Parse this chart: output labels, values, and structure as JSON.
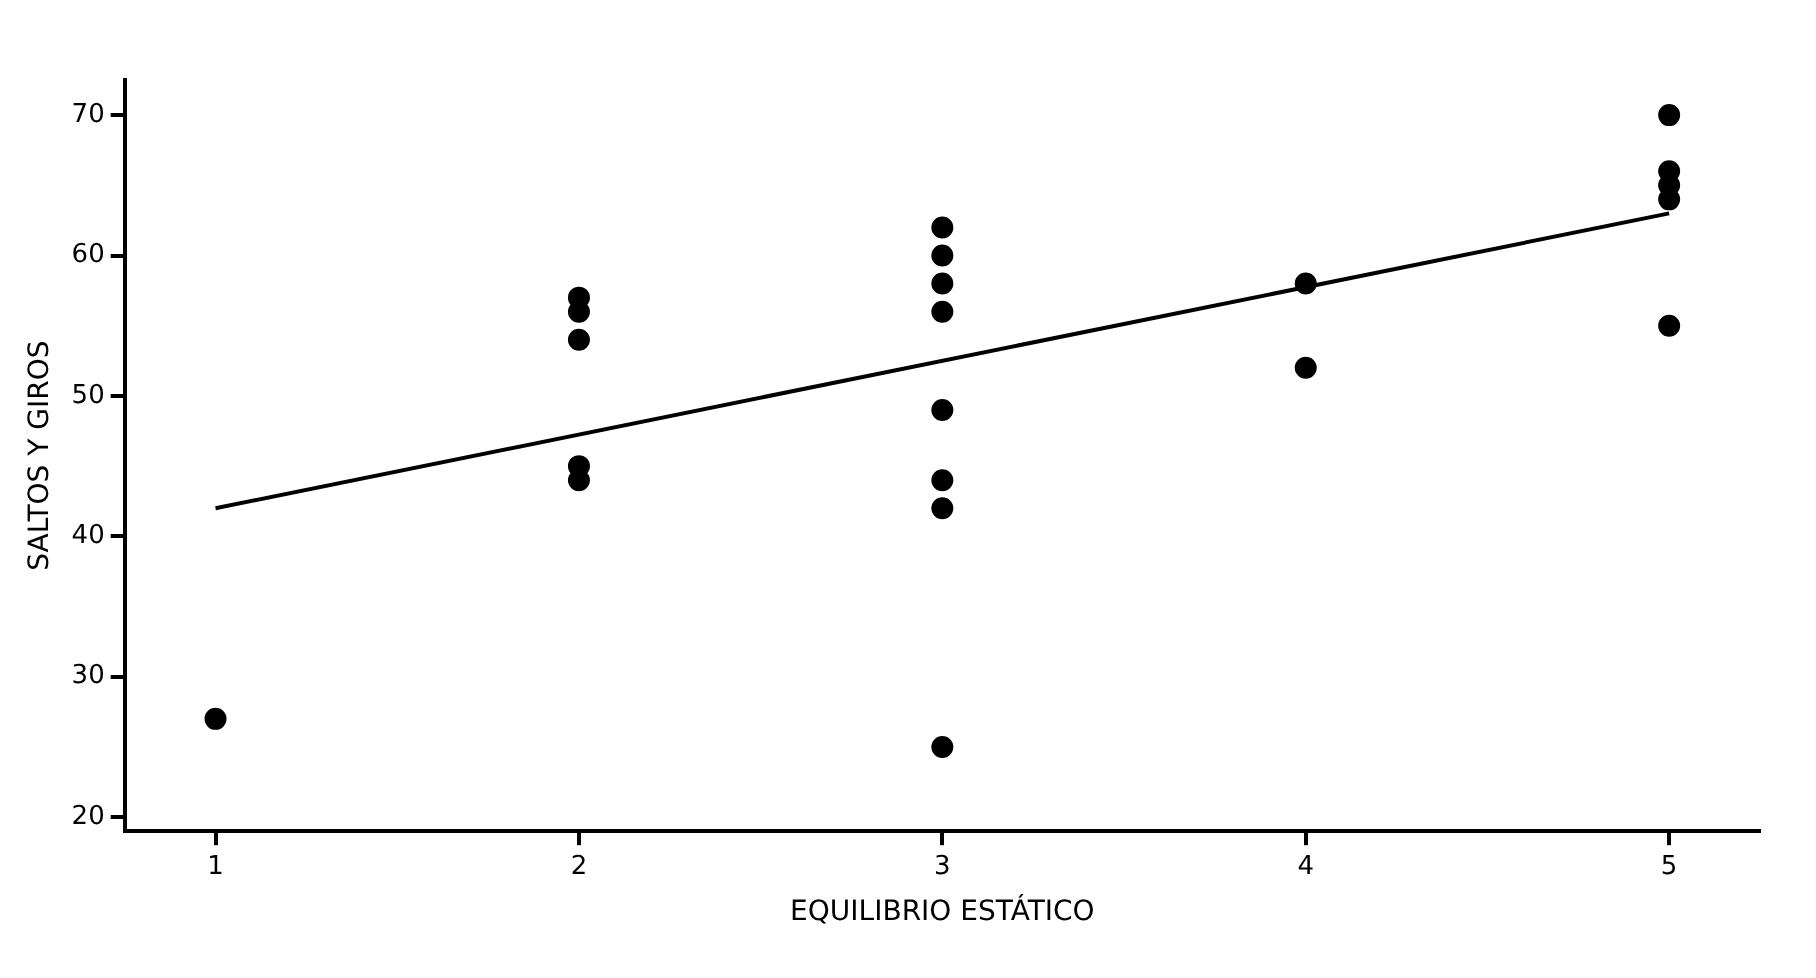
{
  "chart_data": {
    "type": "scatter",
    "xlabel": "EQUILIBRIO ESTÁTICO",
    "ylabel": "SALTOS Y GIROS",
    "xlim": [
      0.75,
      5.25
    ],
    "ylim": [
      19,
      72.5
    ],
    "xticks": [
      1,
      2,
      3,
      4,
      5
    ],
    "yticks": [
      20,
      30,
      40,
      50,
      60,
      70
    ],
    "grid": false,
    "legend": false,
    "marker": "circle",
    "series": [
      {
        "color": "#000000",
        "x": [
          1,
          2,
          2,
          2,
          2,
          2,
          3,
          3,
          3,
          3,
          3,
          3,
          3,
          3,
          4,
          4,
          5,
          5,
          5,
          5,
          5
        ],
        "values": [
          27,
          57,
          56,
          54,
          45,
          44,
          62,
          60,
          58,
          56,
          49,
          44,
          42,
          25,
          58,
          52,
          70,
          66,
          65,
          64,
          55
        ]
      },
      {
        "type": "line",
        "color": "#000000",
        "x": [
          1,
          5
        ],
        "values": [
          42,
          63
        ],
        "marker": "none",
        "line_style": "solid"
      }
    ]
  }
}
